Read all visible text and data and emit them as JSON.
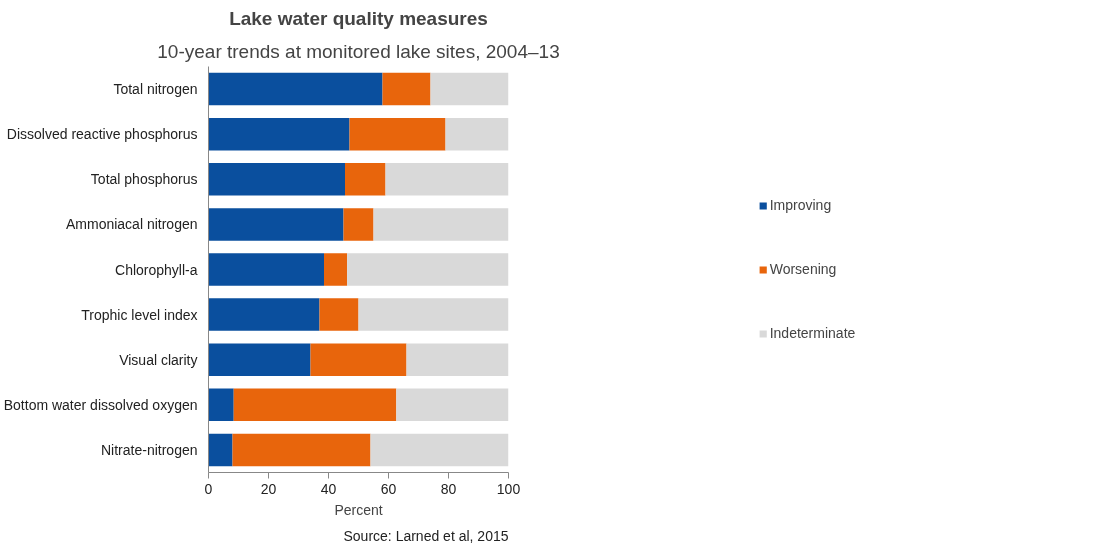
{
  "chart_data": {
    "type": "bar",
    "orientation": "horizontal",
    "stacked": true,
    "title": "Lake water quality measures",
    "subtitle": "10-year trends at monitored lake sites, 2004–13",
    "xlabel": "Percent",
    "categories": [
      "Total nitrogen",
      "Dissolved reactive phosphorus",
      "Total phosphorus",
      "Ammoniacal nitrogen",
      "Chlorophyll-a",
      "Trophic level index",
      "Visual clarity",
      "Bottom water dissolved oxygen",
      "Nitrate-nitrogen"
    ],
    "series": [
      {
        "name": "Improving",
        "color": "#0a4f9e",
        "values": [
          58,
          47,
          45.5,
          45,
          38.5,
          37,
          34,
          8.4,
          8
        ]
      },
      {
        "name": "Worsening",
        "color": "#e8650c",
        "values": [
          16,
          32,
          13.5,
          10,
          7.7,
          13,
          32,
          54.2,
          46
        ]
      },
      {
        "name": "Indeterminate",
        "color": "#d9d9d9",
        "values": [
          26,
          21,
          41,
          45,
          53.8,
          50,
          34,
          37.4,
          46
        ]
      }
    ],
    "xlim": [
      0,
      100
    ],
    "xticks": [
      0,
      20,
      40,
      60,
      80,
      100
    ],
    "grid": false,
    "legend": "right",
    "annotations": [
      "Source: Larned et al, 2015"
    ]
  }
}
